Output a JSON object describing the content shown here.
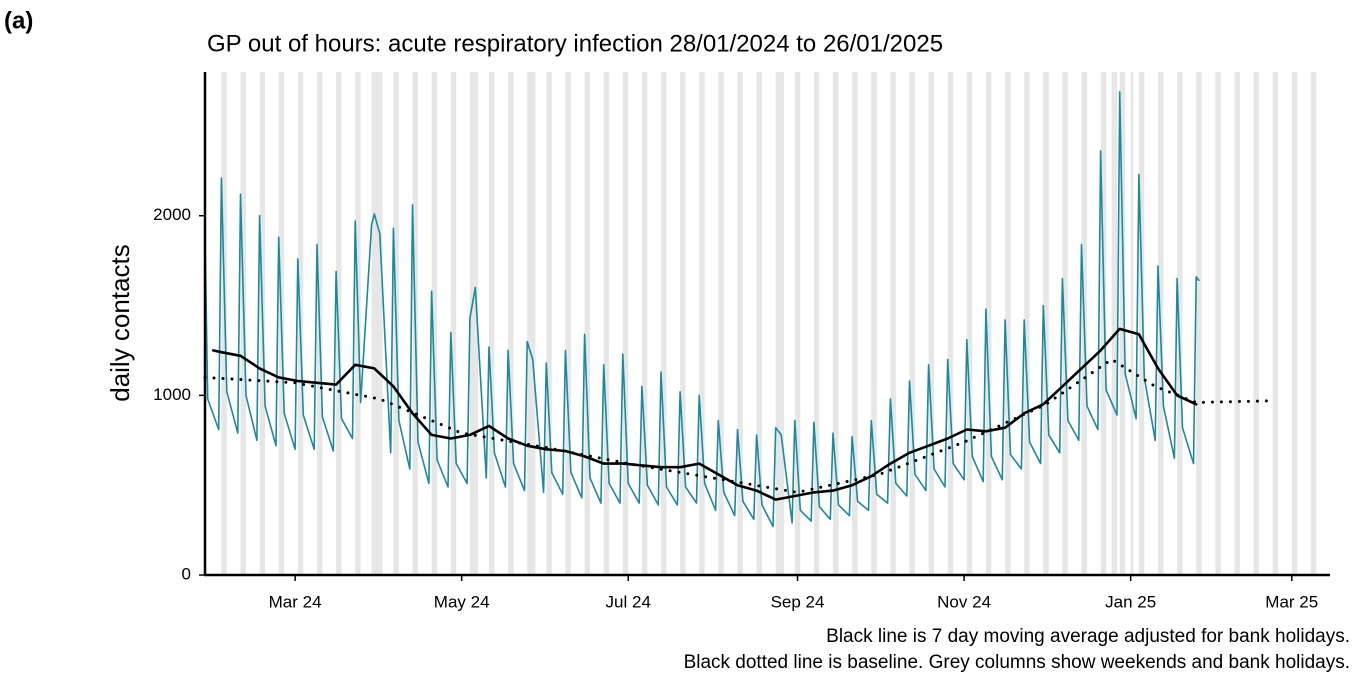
{
  "panel_label": "(a)",
  "chart_data": {
    "type": "line",
    "title": "GP out of hours: acute respiratory infection 28/01/2024 to 26/01/2025",
    "y_label": "daily contacts",
    "notes": [
      "Black line is 7 day moving average adjusted for bank holidays.",
      "Black dotted line is baseline. Grey columns show weekends and bank holidays."
    ],
    "xlim": [
      "2024-01-28",
      "2025-03-15"
    ],
    "xticks": [
      {
        "value": "2024-03-01",
        "label": "Mar 24"
      },
      {
        "value": "2024-05-01",
        "label": "May 24"
      },
      {
        "value": "2024-07-01",
        "label": "Jul 24"
      },
      {
        "value": "2024-09-01",
        "label": "Sep 24"
      },
      {
        "value": "2024-11-01",
        "label": "Nov 24"
      },
      {
        "value": "2025-01-01",
        "label": "Jan 25"
      },
      {
        "value": "2025-03-01",
        "label": "Mar 25"
      }
    ],
    "ylim": [
      0,
      2800
    ],
    "yticks": [
      0,
      1000,
      2000
    ],
    "weekend_shading": true,
    "shading_color": "#e6e6e6",
    "bank_holidays": [
      "2024-03-29",
      "2024-04-01",
      "2024-05-06",
      "2024-05-27",
      "2024-08-26",
      "2024-12-25",
      "2024-12-26",
      "2025-01-01"
    ],
    "series": [
      {
        "color": "#1b8a9b",
        "style": "solid",
        "x": [
          "2024-01-28",
          "2024-01-29",
          "2024-02-02",
          "2024-02-03",
          "2024-02-05",
          "2024-02-09",
          "2024-02-10",
          "2024-02-12",
          "2024-02-16",
          "2024-02-17",
          "2024-02-19",
          "2024-02-23",
          "2024-02-24",
          "2024-02-26",
          "2024-03-01",
          "2024-03-02",
          "2024-03-04",
          "2024-03-08",
          "2024-03-09",
          "2024-03-11",
          "2024-03-15",
          "2024-03-16",
          "2024-03-18",
          "2024-03-22",
          "2024-03-23",
          "2024-03-25",
          "2024-03-29",
          "2024-03-30",
          "2024-04-01",
          "2024-04-05",
          "2024-04-06",
          "2024-04-08",
          "2024-04-12",
          "2024-04-13",
          "2024-04-15",
          "2024-04-19",
          "2024-04-20",
          "2024-04-22",
          "2024-04-26",
          "2024-04-27",
          "2024-04-29",
          "2024-05-03",
          "2024-05-04",
          "2024-05-06",
          "2024-05-10",
          "2024-05-11",
          "2024-05-13",
          "2024-05-17",
          "2024-05-18",
          "2024-05-20",
          "2024-05-24",
          "2024-05-25",
          "2024-05-27",
          "2024-05-31",
          "2024-06-01",
          "2024-06-03",
          "2024-06-07",
          "2024-06-08",
          "2024-06-10",
          "2024-06-14",
          "2024-06-15",
          "2024-06-17",
          "2024-06-21",
          "2024-06-22",
          "2024-06-24",
          "2024-06-28",
          "2024-06-29",
          "2024-07-01",
          "2024-07-05",
          "2024-07-06",
          "2024-07-08",
          "2024-07-12",
          "2024-07-13",
          "2024-07-15",
          "2024-07-19",
          "2024-07-20",
          "2024-07-22",
          "2024-07-26",
          "2024-07-27",
          "2024-07-29",
          "2024-08-02",
          "2024-08-03",
          "2024-08-05",
          "2024-08-09",
          "2024-08-10",
          "2024-08-12",
          "2024-08-16",
          "2024-08-17",
          "2024-08-19",
          "2024-08-23",
          "2024-08-24",
          "2024-08-26",
          "2024-08-30",
          "2024-08-31",
          "2024-09-02",
          "2024-09-06",
          "2024-09-07",
          "2024-09-09",
          "2024-09-13",
          "2024-09-14",
          "2024-09-16",
          "2024-09-20",
          "2024-09-21",
          "2024-09-23",
          "2024-09-27",
          "2024-09-28",
          "2024-09-30",
          "2024-10-04",
          "2024-10-05",
          "2024-10-07",
          "2024-10-11",
          "2024-10-12",
          "2024-10-14",
          "2024-10-18",
          "2024-10-19",
          "2024-10-21",
          "2024-10-25",
          "2024-10-26",
          "2024-10-28",
          "2024-11-01",
          "2024-11-02",
          "2024-11-04",
          "2024-11-08",
          "2024-11-09",
          "2024-11-11",
          "2024-11-15",
          "2024-11-16",
          "2024-11-18",
          "2024-11-22",
          "2024-11-23",
          "2024-11-25",
          "2024-11-29",
          "2024-11-30",
          "2024-12-02",
          "2024-12-06",
          "2024-12-07",
          "2024-12-09",
          "2024-12-13",
          "2024-12-14",
          "2024-12-16",
          "2024-12-20",
          "2024-12-21",
          "2024-12-23",
          "2024-12-27",
          "2024-12-28",
          "2024-12-30",
          "2025-01-03",
          "2025-01-04",
          "2025-01-06",
          "2025-01-10",
          "2025-01-11",
          "2025-01-13",
          "2025-01-17",
          "2025-01-18",
          "2025-01-20",
          "2025-01-24",
          "2025-01-25",
          "2025-01-26"
        ],
        "values": [
          1900,
          980,
          810,
          2210,
          1020,
          790,
          2120,
          1000,
          750,
          2000,
          940,
          720,
          1880,
          900,
          700,
          1760,
          890,
          700,
          1840,
          880,
          690,
          1690,
          870,
          760,
          1970,
          960,
          1950,
          2010,
          1900,
          680,
          1930,
          860,
          590,
          2060,
          740,
          510,
          1580,
          640,
          490,
          1350,
          620,
          510,
          1430,
          1600,
          540,
          1270,
          680,
          490,
          1250,
          620,
          470,
          1300,
          1200,
          460,
          1180,
          570,
          450,
          1250,
          570,
          430,
          1340,
          540,
          400,
          1170,
          510,
          400,
          1230,
          510,
          400,
          1050,
          500,
          390,
          1130,
          490,
          390,
          1020,
          490,
          400,
          1000,
          510,
          360,
          860,
          460,
          330,
          810,
          410,
          310,
          780,
          390,
          270,
          820,
          780,
          290,
          860,
          360,
          300,
          850,
          380,
          310,
          790,
          390,
          330,
          770,
          410,
          360,
          860,
          450,
          400,
          980,
          510,
          440,
          1080,
          560,
          470,
          1170,
          590,
          490,
          1200,
          620,
          530,
          1310,
          660,
          520,
          1480,
          660,
          530,
          1420,
          670,
          590,
          1420,
          740,
          620,
          1500,
          780,
          680,
          1650,
          860,
          750,
          1840,
          940,
          810,
          2360,
          1030,
          890,
          2690,
          1120,
          870,
          2230,
          1100,
          750,
          1720,
          940,
          650,
          1650,
          820,
          620,
          1660,
          1640
        ]
      },
      {
        "color": "#000000",
        "style": "solid",
        "x": [
          "2024-01-31",
          "2024-02-03",
          "2024-02-10",
          "2024-02-17",
          "2024-02-24",
          "2024-03-02",
          "2024-03-09",
          "2024-03-16",
          "2024-03-23",
          "2024-03-30",
          "2024-04-06",
          "2024-04-13",
          "2024-04-20",
          "2024-04-27",
          "2024-05-04",
          "2024-05-11",
          "2024-05-18",
          "2024-05-25",
          "2024-06-01",
          "2024-06-08",
          "2024-06-15",
          "2024-06-22",
          "2024-06-29",
          "2024-07-06",
          "2024-07-13",
          "2024-07-20",
          "2024-07-27",
          "2024-08-03",
          "2024-08-10",
          "2024-08-17",
          "2024-08-24",
          "2024-08-31",
          "2024-09-07",
          "2024-09-14",
          "2024-09-21",
          "2024-09-28",
          "2024-10-05",
          "2024-10-12",
          "2024-10-19",
          "2024-10-26",
          "2024-11-02",
          "2024-11-09",
          "2024-11-16",
          "2024-11-23",
          "2024-11-30",
          "2024-12-07",
          "2024-12-14",
          "2024-12-21",
          "2024-12-28",
          "2025-01-04",
          "2025-01-11",
          "2025-01-18",
          "2025-01-25"
        ],
        "values": [
          1250,
          1240,
          1220,
          1150,
          1100,
          1080,
          1070,
          1060,
          1170,
          1150,
          1050,
          900,
          780,
          760,
          780,
          830,
          760,
          720,
          700,
          690,
          660,
          620,
          620,
          610,
          600,
          600,
          620,
          560,
          500,
          470,
          420,
          440,
          460,
          470,
          500,
          550,
          620,
          680,
          720,
          760,
          810,
          800,
          820,
          900,
          950,
          1050,
          1150,
          1250,
          1370,
          1340,
          1150,
          1000,
          950
        ]
      },
      {
        "color": "#000000",
        "style": "dotted",
        "x": [
          "2024-01-28",
          "2024-03-01",
          "2024-04-01",
          "2024-05-01",
          "2024-06-01",
          "2024-07-01",
          "2024-08-01",
          "2024-09-01",
          "2024-10-01",
          "2024-11-01",
          "2024-12-01",
          "2024-12-25",
          "2025-01-10",
          "2025-01-25",
          "2025-02-23"
        ],
        "values": [
          1100,
          1070,
          980,
          790,
          710,
          620,
          540,
          460,
          560,
          740,
          950,
          1200,
          1050,
          960,
          970
        ]
      }
    ]
  }
}
